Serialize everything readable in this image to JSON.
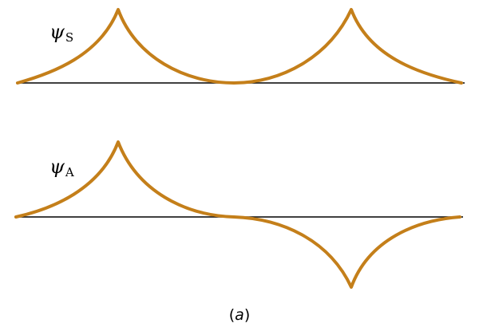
{
  "wave_color": "#c47f1a",
  "axis_color": "#000000",
  "symmetric": {
    "symbol": "ψ",
    "subscript": "S"
  },
  "antisymmetric": {
    "symbol": "ψ",
    "subscript": "A"
  },
  "caption": {
    "open": "(",
    "letter": "a",
    "close": ")"
  }
}
